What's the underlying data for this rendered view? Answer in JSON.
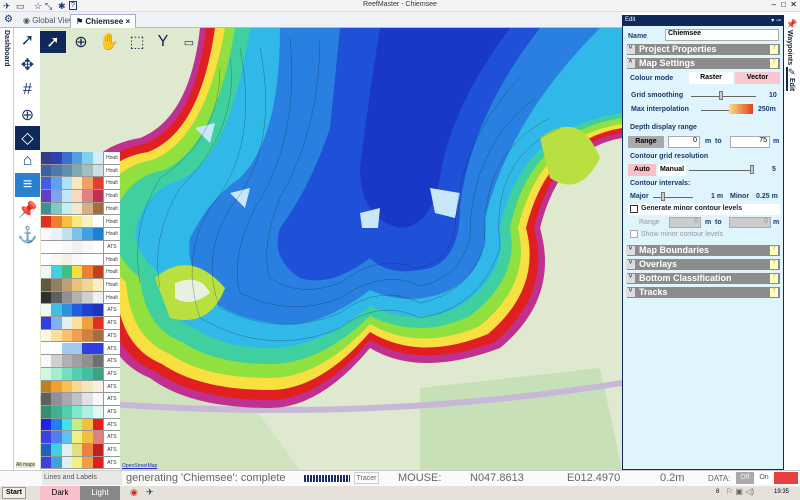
{
  "app": {
    "title": "ReefMaster - Chiemsee"
  },
  "tabs": [
    {
      "label": "Global View"
    },
    {
      "label": "Chiemsee"
    }
  ],
  "dashboard_label": "Dashboard",
  "right_tabs": [
    {
      "label": "Waypoints"
    },
    {
      "label": "Edit"
    }
  ],
  "panel": {
    "header": "Edit",
    "name_label": "Name",
    "name_value": "Chiemsee",
    "sections": {
      "project_properties": "Project Properties",
      "map_settings": "Map Settings",
      "map_boundaries": "Map Boundaries",
      "overlays": "Overlays",
      "bottom_classification": "Bottom Classification",
      "tracks": "Tracks"
    },
    "help": "?",
    "colour_mode_label": "Colour mode",
    "raster": "Raster",
    "vector": "Vector",
    "colour_mode_selected": "Vector",
    "grid_smoothing_label": "Grid smoothing",
    "grid_smoothing_value": "10",
    "max_interp_label": "Max interpolation",
    "max_interp_value": "250m",
    "depth_range_label": "Depth display range",
    "range_btn": "Range",
    "depth_from": "0",
    "depth_to": "75",
    "unit_m": "m",
    "to": "to",
    "contour_res_label": "Contour grid resolution",
    "auto": "Auto",
    "manual": "Manual",
    "contour_res_value": "5",
    "contour_intervals_label": "Contour intervals:",
    "major_label": "Major",
    "major_value": "1 m",
    "minor_label": "Minor",
    "minor_value": "0.25 m",
    "gen_minor_label": "Generate minor contour levels",
    "gen_minor_checked": false,
    "minor_range_label": "Range",
    "minor_from": "0",
    "minor_to": "0",
    "show_minor_label": "Show minor contour levels",
    "show_minor_checked": false
  },
  "palettes": {
    "labels": [
      "Hoult",
      "Hoult",
      "Hoult",
      "Hoult",
      "Hoult",
      "Hoult",
      "Hoult",
      "ATS",
      "Hoult",
      "Hoult",
      "Hoult",
      "Hoult",
      "ATS",
      "ATS",
      "ATS",
      "ATS",
      "ATS",
      "ATS",
      "ATS",
      "ATS",
      "ATS",
      "ATS",
      "ATS",
      "ATS",
      "ATS"
    ],
    "colors": [
      [
        "#3a3a8a",
        "#3040b0",
        "#3a70d0",
        "#50a0e0",
        "#80d0f0",
        "#d0f0f8"
      ],
      [
        "#4060a0",
        "#5078a8",
        "#6090a8",
        "#80a8b0",
        "#a0c0c0",
        "#d0e0e0"
      ],
      [
        "#4060e0",
        "#60a0f0",
        "#b0e0f8",
        "#f8e8c0",
        "#f0a060",
        "#e04030"
      ],
      [
        "#6040c0",
        "#80a0f0",
        "#c0e8f8",
        "#f8d8c0",
        "#e08080",
        "#c03050"
      ],
      [
        "#409090",
        "#80c8c0",
        "#c0f0f0",
        "#f0e8d0",
        "#d8b080",
        "#a07040"
      ],
      [
        "#e03020",
        "#f08030",
        "#f8c040",
        "#f8e880",
        "#f8f0c0",
        "#ffffff"
      ],
      [
        "#f8f8f8",
        "#e8f0f8",
        "#c0e0f0",
        "#80c0e8",
        "#40a0e0",
        "#2080d0"
      ],
      [
        "#ffffff",
        "#ffffff",
        "#f8f8f8",
        "#f0f0f0",
        "#f8f8f8",
        "#ffffff"
      ],
      [
        "#ffffff",
        "#f8f8f0",
        "#f0f0e8",
        "#f8f8f8",
        "#ffffff",
        "#ffffff"
      ],
      [
        "#f0f8f0",
        "#40d0e0",
        "#40c080",
        "#f0e040",
        "#f08030",
        "#c04020"
      ],
      [
        "#605840",
        "#908060",
        "#c0a070",
        "#e8c080",
        "#f0d890",
        "#f8f0c0"
      ],
      [
        "#303030",
        "#606060",
        "#909090",
        "#b0b0b0",
        "#d0d0d0",
        "#f0f0f0"
      ],
      [
        "#f0f8f8",
        "#40c0e0",
        "#3090e0",
        "#2060e0",
        "#2040d0",
        "#2030c0"
      ],
      [
        "#3040e0",
        "#80b0f0",
        "#e0f0f0",
        "#f8e0a0",
        "#f0a040",
        "#e03020"
      ],
      [
        "#fff8e0",
        "#f8e0a0",
        "#f8c070",
        "#f0a050",
        "#d08040",
        "#a07040"
      ],
      [
        "#ffffff",
        "#ffffff",
        "#a0c8f0",
        "#a0c8f0",
        "#3040e0",
        "#3040e0"
      ],
      [
        "#f8f8f8",
        "#d0d0d0",
        "#b0b0b0",
        "#a0a0a0",
        "#909090",
        "#707070"
      ],
      [
        "#d0f8e0",
        "#a0f0d0",
        "#70e0c0",
        "#50d0b0",
        "#40c0a0",
        "#40a080"
      ],
      [
        "#c08020",
        "#f0a030",
        "#f8c050",
        "#f8d890",
        "#f0e8c0",
        "#f8f0e0"
      ],
      [
        "#606060",
        "#909098",
        "#a8a8b0",
        "#c0c0c8",
        "#e0e0e8",
        "#f8f8f8"
      ],
      [
        "#309070",
        "#40b090",
        "#50d0b0",
        "#80e8d0",
        "#b0f0e0",
        "#e0f8f0"
      ],
      [
        "#2020f0",
        "#2080f0",
        "#40e0f0",
        "#c0f080",
        "#f0c040",
        "#e02020"
      ],
      [
        "#4040e0",
        "#5080f0",
        "#60c0f0",
        "#f0f080",
        "#f0c040",
        "#e08080"
      ],
      [
        "#2060c0",
        "#40d0e0",
        "#e0f0f0",
        "#e0e080",
        "#f08040",
        "#c02020"
      ],
      [
        "#4040e0",
        "#40a0e0",
        "#e0f0f0",
        "#f0f080",
        "#f0a040",
        "#e02020"
      ]
    ]
  },
  "map": {
    "attribution_left": "All maps",
    "attribution_right": "OpenStreetMap",
    "overlay_label": "Lines and Labels",
    "dark": "Dark",
    "light": "Light"
  },
  "status": {
    "message": "generating 'Chiemsee': complete",
    "tracer": "Tracer",
    "mouse_label": "MOUSE:",
    "lat": "N047.8613",
    "lon": "E012.4970",
    "depth": "0.2m",
    "data_label": "DATA:",
    "off": "Off",
    "on": "On",
    "progress": 1.0
  },
  "taskbar": {
    "start": "Start",
    "time": "19:35",
    "tray_num": "8"
  },
  "colors": {
    "navy": "#0f2a5a",
    "vector_pink": "#f8c8d0",
    "section_grey": "#8c8c8c",
    "panel_bg": "#dff4fc"
  }
}
